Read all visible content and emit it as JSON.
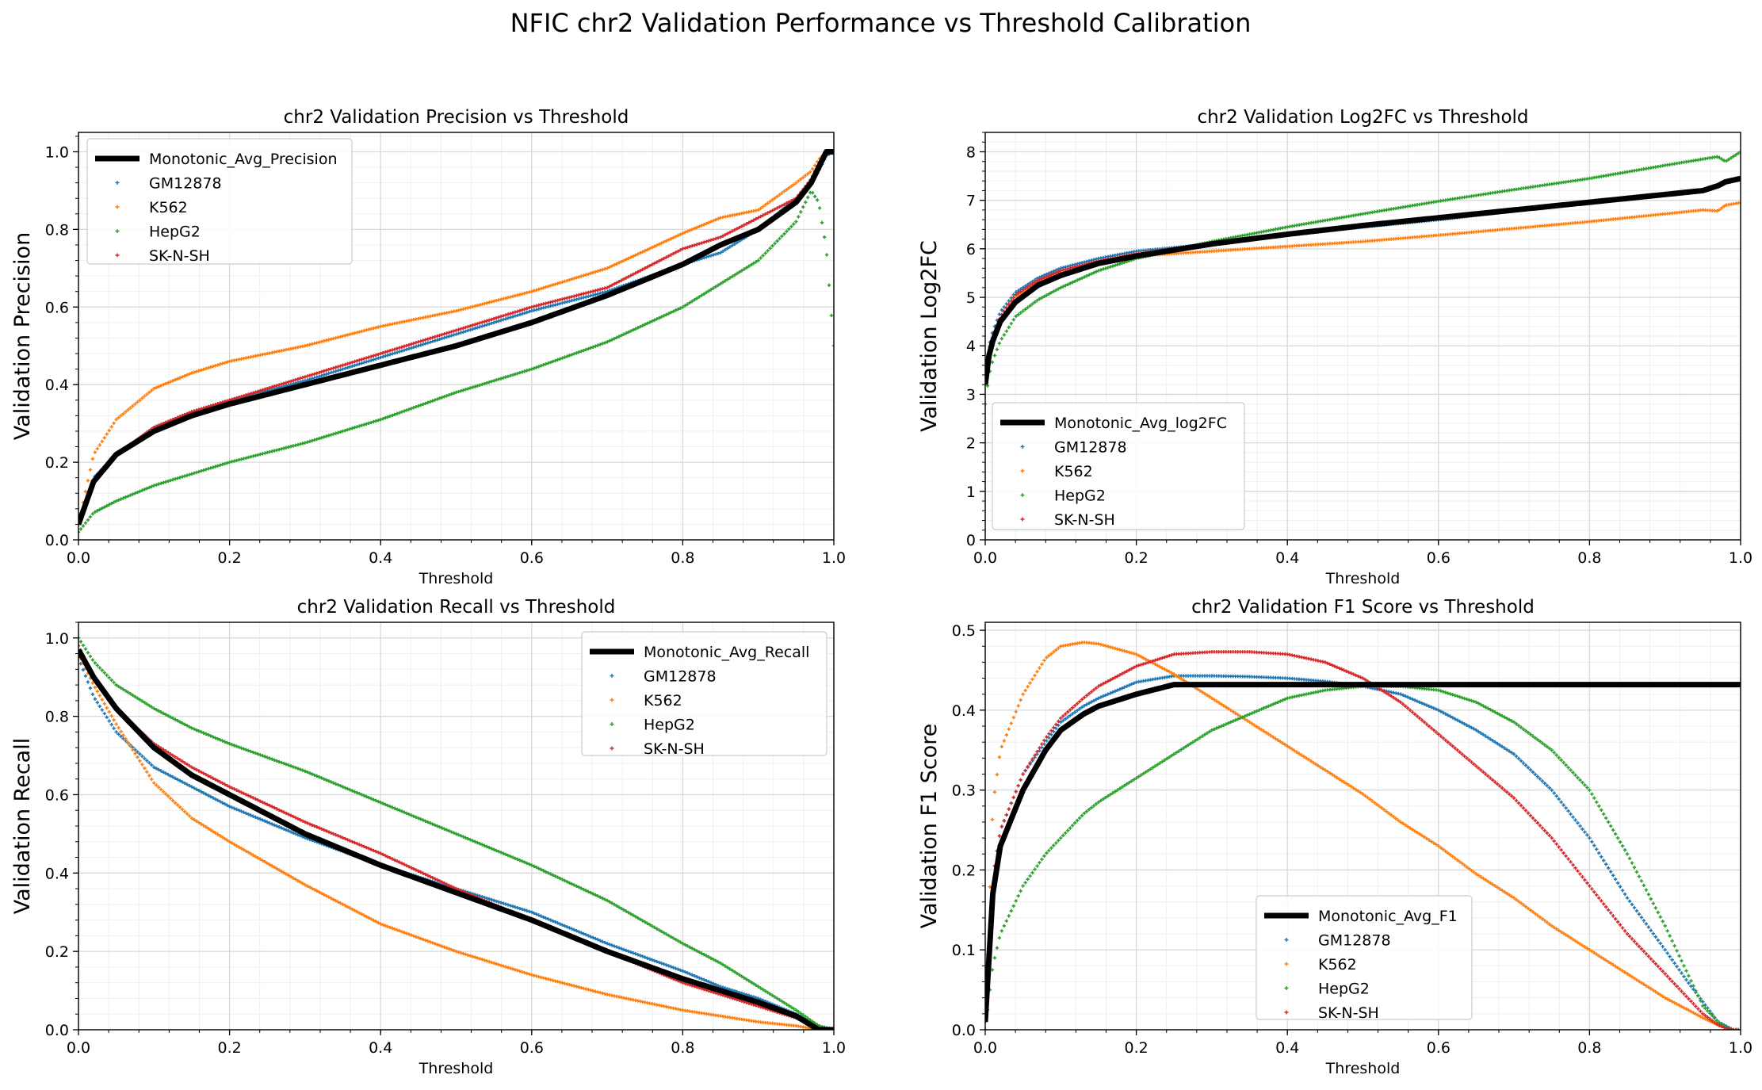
{
  "figure_title": "NFIC chr2 Validation Performance vs Threshold Calibration",
  "colors": {
    "GM12878": "#1f77b4",
    "K562": "#ff7f0e",
    "HepG2": "#2ca02c",
    "SK-N-SH": "#d62728",
    "monotonic": "#000000",
    "grid_major": "#d9d9d9",
    "grid_minor": "#efefef"
  },
  "chart_data": [
    {
      "type": "scatter",
      "title": "chr2 Validation Precision vs Threshold",
      "xlabel": "Threshold",
      "ylabel": "Validation Precision",
      "xlim": [
        0,
        1
      ],
      "ylim": [
        0,
        1.05
      ],
      "xticks": [
        "0.0",
        "0.2",
        "0.4",
        "0.6",
        "0.8",
        "1.0"
      ],
      "yticks": [
        "0.0",
        "0.2",
        "0.4",
        "0.6",
        "0.8",
        "1.0"
      ],
      "grid": true,
      "legend_position": "top-left",
      "x": [
        0.0,
        0.02,
        0.05,
        0.1,
        0.15,
        0.2,
        0.3,
        0.4,
        0.5,
        0.6,
        0.7,
        0.8,
        0.85,
        0.9,
        0.95,
        0.97,
        0.98,
        0.99,
        1.0
      ],
      "series": [
        {
          "name": "Monotonic_Avg_Precision",
          "style": "line",
          "values": [
            0.04,
            0.15,
            0.22,
            0.28,
            0.32,
            0.35,
            0.4,
            0.45,
            0.5,
            0.56,
            0.63,
            0.71,
            0.76,
            0.8,
            0.87,
            0.92,
            0.96,
            1.0,
            1.0
          ]
        },
        {
          "name": "GM12878",
          "style": "markers",
          "values": [
            0.04,
            0.16,
            0.22,
            0.29,
            0.33,
            0.36,
            0.41,
            0.47,
            0.53,
            0.59,
            0.64,
            0.71,
            0.74,
            0.8,
            0.88,
            0.92,
            0.95,
            0.99,
            1.0
          ]
        },
        {
          "name": "K562",
          "style": "markers",
          "values": [
            0.04,
            0.22,
            0.31,
            0.39,
            0.43,
            0.46,
            0.5,
            0.55,
            0.59,
            0.64,
            0.7,
            0.79,
            0.83,
            0.85,
            0.92,
            0.95,
            0.98,
            1.0,
            1.0
          ]
        },
        {
          "name": "HepG2",
          "style": "markers",
          "values": [
            0.02,
            0.07,
            0.1,
            0.14,
            0.17,
            0.2,
            0.25,
            0.31,
            0.38,
            0.44,
            0.51,
            0.6,
            0.66,
            0.72,
            0.82,
            0.9,
            0.87,
            0.75,
            0.5
          ]
        },
        {
          "name": "SK-N-SH",
          "style": "markers",
          "values": [
            0.04,
            0.15,
            0.22,
            0.29,
            0.33,
            0.36,
            0.42,
            0.48,
            0.54,
            0.6,
            0.65,
            0.75,
            0.78,
            0.83,
            0.88,
            0.93,
            0.97,
            1.0,
            1.0
          ]
        }
      ]
    },
    {
      "type": "scatter",
      "title": "chr2 Validation Log2FC vs Threshold",
      "xlabel": "Threshold",
      "ylabel": "Validation Log2FC",
      "xlim": [
        0,
        1
      ],
      "ylim": [
        0,
        8.4
      ],
      "xticks": [
        "0.0",
        "0.2",
        "0.4",
        "0.6",
        "0.8",
        "1.0"
      ],
      "yticks": [
        "0",
        "1",
        "2",
        "3",
        "4",
        "5",
        "6",
        "7",
        "8"
      ],
      "grid": true,
      "legend_position": "bottom-left",
      "x": [
        0.0,
        0.005,
        0.01,
        0.02,
        0.04,
        0.07,
        0.1,
        0.15,
        0.2,
        0.3,
        0.4,
        0.5,
        0.6,
        0.7,
        0.8,
        0.9,
        0.95,
        0.97,
        0.98,
        1.0
      ],
      "series": [
        {
          "name": "Monotonic_Avg_log2FC",
          "style": "line",
          "values": [
            3.2,
            3.8,
            4.1,
            4.5,
            4.9,
            5.25,
            5.45,
            5.7,
            5.85,
            6.1,
            6.3,
            6.48,
            6.64,
            6.8,
            6.96,
            7.12,
            7.2,
            7.3,
            7.38,
            7.45
          ]
        },
        {
          "name": "GM12878",
          "style": "markers",
          "values": [
            3.4,
            4.0,
            4.3,
            4.7,
            5.1,
            5.4,
            5.6,
            5.8,
            5.95,
            6.1,
            6.28,
            6.45,
            6.6,
            6.78,
            6.95,
            7.12,
            7.2,
            7.3,
            7.4,
            7.45
          ]
        },
        {
          "name": "K562",
          "style": "markers",
          "values": [
            3.3,
            3.9,
            4.2,
            4.6,
            5.0,
            5.3,
            5.5,
            5.7,
            5.85,
            5.95,
            6.05,
            6.15,
            6.28,
            6.42,
            6.56,
            6.72,
            6.8,
            6.78,
            6.9,
            6.95
          ]
        },
        {
          "name": "HepG2",
          "style": "markers",
          "values": [
            2.8,
            3.4,
            3.7,
            4.1,
            4.6,
            4.95,
            5.2,
            5.55,
            5.8,
            6.15,
            6.45,
            6.72,
            6.98,
            7.22,
            7.45,
            7.72,
            7.85,
            7.9,
            7.8,
            8.0
          ]
        },
        {
          "name": "SK-N-SH",
          "style": "markers",
          "values": [
            3.3,
            3.9,
            4.2,
            4.6,
            5.05,
            5.35,
            5.55,
            5.75,
            5.9,
            6.1,
            6.3,
            6.48,
            6.62,
            6.78,
            6.94,
            7.1,
            7.2,
            7.3,
            7.38,
            7.45
          ]
        }
      ]
    },
    {
      "type": "scatter",
      "title": "chr2 Validation Recall vs Threshold",
      "xlabel": "Threshold",
      "ylabel": "Validation Recall",
      "xlim": [
        0,
        1
      ],
      "ylim": [
        0,
        1.04
      ],
      "xticks": [
        "0.0",
        "0.2",
        "0.4",
        "0.6",
        "0.8",
        "1.0"
      ],
      "yticks": [
        "0.0",
        "0.2",
        "0.4",
        "0.6",
        "0.8",
        "1.0"
      ],
      "grid": true,
      "legend_position": "top-right",
      "x": [
        0.0,
        0.02,
        0.05,
        0.1,
        0.15,
        0.2,
        0.3,
        0.4,
        0.5,
        0.6,
        0.7,
        0.8,
        0.85,
        0.9,
        0.95,
        0.98,
        1.0
      ],
      "series": [
        {
          "name": "Monotonic_Avg_Recall",
          "style": "line",
          "values": [
            0.97,
            0.9,
            0.82,
            0.72,
            0.65,
            0.6,
            0.5,
            0.42,
            0.35,
            0.28,
            0.2,
            0.13,
            0.1,
            0.07,
            0.035,
            0.0,
            0.0
          ]
        },
        {
          "name": "GM12878",
          "style": "markers",
          "values": [
            0.95,
            0.85,
            0.76,
            0.67,
            0.62,
            0.57,
            0.49,
            0.42,
            0.36,
            0.3,
            0.22,
            0.15,
            0.11,
            0.08,
            0.04,
            0.01,
            0.0
          ]
        },
        {
          "name": "K562",
          "style": "markers",
          "values": [
            0.96,
            0.88,
            0.78,
            0.63,
            0.54,
            0.48,
            0.37,
            0.27,
            0.2,
            0.14,
            0.09,
            0.05,
            0.035,
            0.02,
            0.01,
            0.0,
            0.0
          ]
        },
        {
          "name": "HepG2",
          "style": "markers",
          "values": [
            1.0,
            0.94,
            0.88,
            0.82,
            0.77,
            0.73,
            0.66,
            0.58,
            0.5,
            0.42,
            0.33,
            0.22,
            0.17,
            0.11,
            0.05,
            0.01,
            0.0
          ]
        },
        {
          "name": "SK-N-SH",
          "style": "markers",
          "values": [
            0.98,
            0.9,
            0.82,
            0.73,
            0.67,
            0.62,
            0.53,
            0.45,
            0.36,
            0.28,
            0.2,
            0.12,
            0.09,
            0.06,
            0.03,
            0.005,
            0.0
          ]
        }
      ]
    },
    {
      "type": "scatter",
      "title": "chr2 Validation F1 Score vs Threshold",
      "xlabel": "Threshold",
      "ylabel": "Validation F1 Score",
      "xlim": [
        0,
        1
      ],
      "ylim": [
        0,
        0.51
      ],
      "xticks": [
        "0.0",
        "0.2",
        "0.4",
        "0.6",
        "0.8",
        "1.0"
      ],
      "yticks": [
        "0.0",
        "0.1",
        "0.2",
        "0.3",
        "0.4",
        "0.5"
      ],
      "grid": true,
      "legend_position": "bottom-center",
      "x": [
        0.0,
        0.01,
        0.02,
        0.05,
        0.08,
        0.1,
        0.13,
        0.15,
        0.2,
        0.25,
        0.3,
        0.35,
        0.4,
        0.45,
        0.5,
        0.55,
        0.6,
        0.65,
        0.7,
        0.75,
        0.8,
        0.85,
        0.9,
        0.93,
        0.95,
        0.97,
        0.98,
        0.99,
        1.0
      ],
      "series": [
        {
          "name": "Monotonic_Avg_F1",
          "style": "line",
          "values": [
            0.01,
            0.17,
            0.23,
            0.3,
            0.35,
            0.375,
            0.395,
            0.405,
            0.42,
            0.432,
            0.432,
            0.432,
            0.432,
            0.432,
            0.432,
            0.432,
            0.432,
            0.432,
            0.432,
            0.432,
            0.432,
            0.432,
            0.432,
            0.432,
            0.432,
            0.432,
            0.432,
            0.432,
            0.432
          ]
        },
        {
          "name": "GM12878",
          "style": "markers",
          "values": [
            0.01,
            0.19,
            0.25,
            0.32,
            0.36,
            0.385,
            0.405,
            0.415,
            0.435,
            0.443,
            0.443,
            0.442,
            0.44,
            0.436,
            0.43,
            0.42,
            0.4,
            0.375,
            0.345,
            0.3,
            0.24,
            0.165,
            0.1,
            0.06,
            0.035,
            0.01,
            0.005,
            0.0,
            0.0
          ]
        },
        {
          "name": "K562",
          "style": "markers",
          "values": [
            0.01,
            0.28,
            0.35,
            0.42,
            0.465,
            0.48,
            0.485,
            0.483,
            0.47,
            0.445,
            0.415,
            0.385,
            0.355,
            0.325,
            0.295,
            0.26,
            0.23,
            0.195,
            0.165,
            0.13,
            0.1,
            0.07,
            0.04,
            0.025,
            0.015,
            0.006,
            0.003,
            0.0,
            0.0
          ]
        },
        {
          "name": "HepG2",
          "style": "markers",
          "values": [
            0.0,
            0.08,
            0.12,
            0.18,
            0.22,
            0.24,
            0.27,
            0.285,
            0.315,
            0.345,
            0.375,
            0.395,
            0.415,
            0.425,
            0.43,
            0.43,
            0.425,
            0.41,
            0.385,
            0.35,
            0.3,
            0.22,
            0.13,
            0.07,
            0.03,
            0.01,
            0.003,
            0.0,
            0.0
          ]
        },
        {
          "name": "SK-N-SH",
          "style": "markers",
          "values": [
            0.01,
            0.19,
            0.25,
            0.32,
            0.365,
            0.39,
            0.415,
            0.43,
            0.455,
            0.47,
            0.473,
            0.473,
            0.47,
            0.46,
            0.44,
            0.41,
            0.37,
            0.33,
            0.29,
            0.24,
            0.18,
            0.12,
            0.07,
            0.04,
            0.02,
            0.006,
            0.002,
            0.0,
            0.0
          ]
        }
      ]
    }
  ]
}
